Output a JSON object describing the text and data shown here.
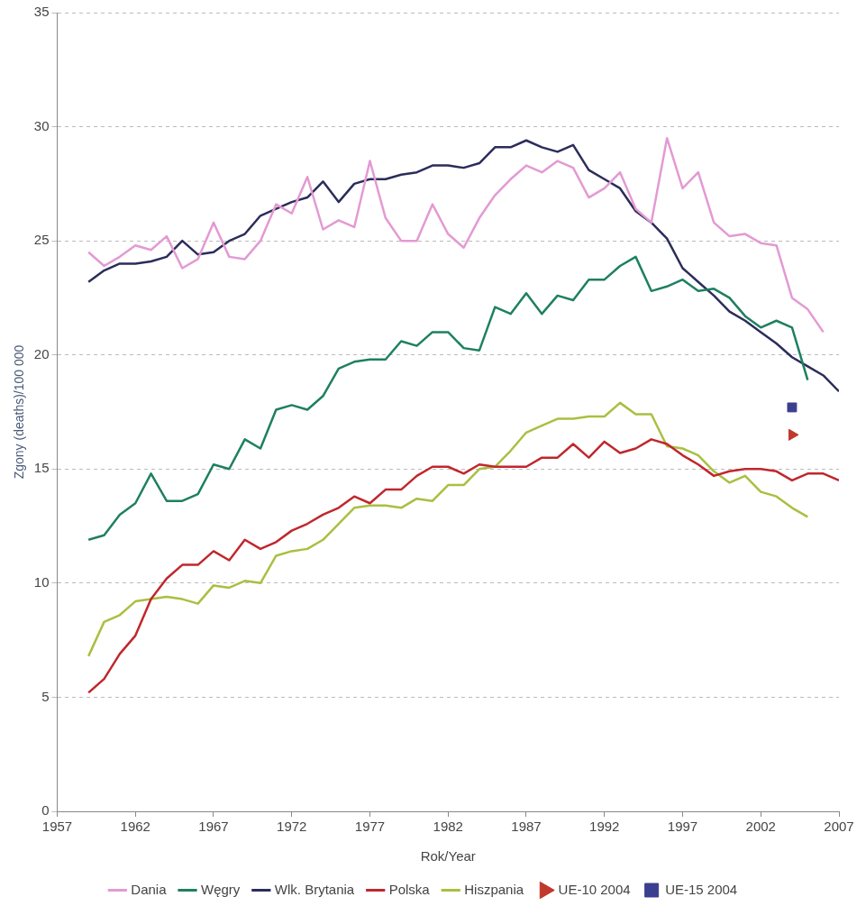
{
  "chart_data": {
    "type": "line",
    "xlabel": "Rok/Year",
    "ylabel": "Zgony (deaths)/100 000",
    "xlim": [
      1957,
      2007
    ],
    "xticks": [
      1957,
      1962,
      1967,
      1972,
      1977,
      1982,
      1987,
      1992,
      1997,
      2002,
      2007
    ],
    "ylim": [
      0,
      35
    ],
    "yticks": [
      0,
      5,
      10,
      15,
      20,
      25,
      30,
      35
    ],
    "grid": "y",
    "legend": "bottom",
    "marker": "none",
    "line_style": "solid",
    "series": [
      {
        "name": "Dania",
        "color": "#e39ad3",
        "x": [
          1959,
          1960,
          1961,
          1962,
          1963,
          1964,
          1965,
          1966,
          1967,
          1968,
          1969,
          1970,
          1971,
          1972,
          1973,
          1974,
          1975,
          1976,
          1977,
          1978,
          1979,
          1980,
          1981,
          1982,
          1983,
          1984,
          1985,
          1986,
          1987,
          1988,
          1989,
          1990,
          1991,
          1992,
          1993,
          1994,
          1995,
          1996,
          1997,
          1998,
          1999,
          2000,
          2001,
          2002,
          2003,
          2004,
          2005,
          2006
        ],
        "values": [
          24.5,
          23.9,
          24.3,
          24.8,
          24.6,
          25.2,
          23.8,
          24.2,
          25.8,
          24.3,
          24.2,
          25.0,
          26.6,
          26.2,
          27.8,
          25.5,
          25.9,
          25.6,
          28.5,
          26.0,
          25.0,
          25.0,
          26.6,
          25.3,
          24.7,
          26.0,
          27.0,
          27.7,
          28.3,
          28.0,
          28.5,
          28.2,
          26.9,
          27.3,
          28.0,
          26.4,
          25.8,
          29.5,
          27.3,
          28.0,
          25.8,
          25.2,
          25.3,
          24.9,
          24.8,
          22.5,
          22.0,
          21.0
        ]
      },
      {
        "name": "Węgry",
        "color": "#1e8060",
        "x": [
          1959,
          1960,
          1961,
          1962,
          1963,
          1964,
          1965,
          1966,
          1967,
          1968,
          1969,
          1970,
          1971,
          1972,
          1973,
          1974,
          1975,
          1976,
          1977,
          1978,
          1979,
          1980,
          1981,
          1982,
          1983,
          1984,
          1985,
          1986,
          1987,
          1988,
          1989,
          1990,
          1991,
          1992,
          1993,
          1994,
          1995,
          1996,
          1997,
          1998,
          1999,
          2000,
          2001,
          2002,
          2003,
          2004,
          2005
        ],
        "values": [
          11.9,
          12.1,
          13.0,
          13.5,
          14.8,
          13.6,
          13.6,
          13.9,
          15.2,
          15.0,
          16.3,
          15.9,
          17.6,
          17.8,
          17.6,
          18.2,
          19.4,
          19.7,
          19.8,
          19.8,
          20.6,
          20.4,
          21.0,
          21.0,
          20.3,
          20.2,
          22.1,
          21.8,
          22.7,
          21.8,
          22.6,
          22.4,
          23.3,
          23.3,
          23.9,
          24.3,
          22.8,
          23.0,
          23.3,
          22.8,
          22.9,
          22.5,
          21.7,
          21.2,
          21.5,
          21.2,
          18.9
        ]
      },
      {
        "name": "Wlk. Brytania",
        "color": "#2b2d5a",
        "x": [
          1959,
          1960,
          1961,
          1962,
          1963,
          1964,
          1965,
          1966,
          1967,
          1968,
          1969,
          1970,
          1971,
          1972,
          1973,
          1974,
          1975,
          1976,
          1977,
          1978,
          1979,
          1980,
          1981,
          1982,
          1983,
          1984,
          1985,
          1986,
          1987,
          1988,
          1989,
          1990,
          1991,
          1992,
          1993,
          1994,
          1995,
          1996,
          1997,
          1998,
          1999,
          2000,
          2001,
          2002,
          2003,
          2004,
          2005,
          2006,
          2007
        ],
        "values": [
          23.2,
          23.7,
          24.0,
          24.0,
          24.1,
          24.3,
          25.0,
          24.4,
          24.5,
          25.0,
          25.3,
          26.1,
          26.4,
          26.7,
          26.9,
          27.6,
          26.7,
          27.5,
          27.7,
          27.7,
          27.9,
          28.0,
          28.3,
          28.3,
          28.2,
          28.4,
          29.1,
          29.1,
          29.4,
          29.1,
          28.9,
          29.2,
          28.1,
          27.7,
          27.3,
          26.3,
          25.8,
          25.1,
          23.8,
          23.2,
          22.6,
          21.9,
          21.5,
          21.0,
          20.5,
          19.9,
          19.5,
          19.1,
          18.4
        ]
      },
      {
        "name": "Polska",
        "color": "#c0272d",
        "x": [
          1959,
          1960,
          1961,
          1962,
          1963,
          1964,
          1965,
          1966,
          1967,
          1968,
          1969,
          1970,
          1971,
          1972,
          1973,
          1974,
          1975,
          1976,
          1977,
          1978,
          1979,
          1980,
          1981,
          1982,
          1983,
          1984,
          1985,
          1986,
          1987,
          1988,
          1989,
          1990,
          1991,
          1992,
          1993,
          1994,
          1995,
          1996,
          1997,
          1998,
          1999,
          2000,
          2001,
          2002,
          2003,
          2004,
          2005,
          2006,
          2007
        ],
        "values": [
          5.2,
          5.8,
          6.9,
          7.7,
          9.3,
          10.2,
          10.8,
          10.8,
          11.4,
          11.0,
          11.9,
          11.5,
          11.8,
          12.3,
          12.6,
          13.0,
          13.3,
          13.8,
          13.5,
          14.1,
          14.1,
          14.7,
          15.1,
          15.1,
          14.8,
          15.2,
          15.1,
          15.1,
          15.1,
          15.5,
          15.5,
          16.1,
          15.5,
          16.2,
          15.7,
          15.9,
          16.3,
          16.1,
          15.6,
          15.2,
          14.7,
          14.9,
          15.0,
          15.0,
          14.9,
          14.5,
          14.8,
          14.8,
          14.5
        ]
      },
      {
        "name": "Hiszpania",
        "color": "#a8c040",
        "x": [
          1959,
          1960,
          1961,
          1962,
          1963,
          1964,
          1965,
          1966,
          1967,
          1968,
          1969,
          1970,
          1971,
          1972,
          1973,
          1974,
          1975,
          1976,
          1977,
          1978,
          1979,
          1980,
          1981,
          1982,
          1983,
          1984,
          1985,
          1986,
          1987,
          1988,
          1989,
          1990,
          1991,
          1992,
          1993,
          1994,
          1995,
          1996,
          1997,
          1998,
          1999,
          2000,
          2001,
          2002,
          2003,
          2004,
          2005
        ],
        "values": [
          6.8,
          8.3,
          8.6,
          9.2,
          9.3,
          9.4,
          9.3,
          9.1,
          9.9,
          9.8,
          10.1,
          10.0,
          11.2,
          11.4,
          11.5,
          11.9,
          12.6,
          13.3,
          13.4,
          13.4,
          13.3,
          13.7,
          13.6,
          14.3,
          14.3,
          15.0,
          15.1,
          15.8,
          16.6,
          16.9,
          17.2,
          17.2,
          17.3,
          17.3,
          17.9,
          17.4,
          17.4,
          16.0,
          15.9,
          15.6,
          14.9,
          14.4,
          14.7,
          14.0,
          13.8,
          13.3,
          12.9
        ]
      },
      {
        "name": "UE-10 2004",
        "type": "scatter",
        "marker": "triangle",
        "color": "#c0392b",
        "x": [
          2004
        ],
        "values": [
          16.5
        ]
      },
      {
        "name": "UE-15 2004",
        "type": "scatter",
        "marker": "square",
        "color": "#3b3f8f",
        "x": [
          2004
        ],
        "values": [
          17.7
        ]
      }
    ]
  }
}
